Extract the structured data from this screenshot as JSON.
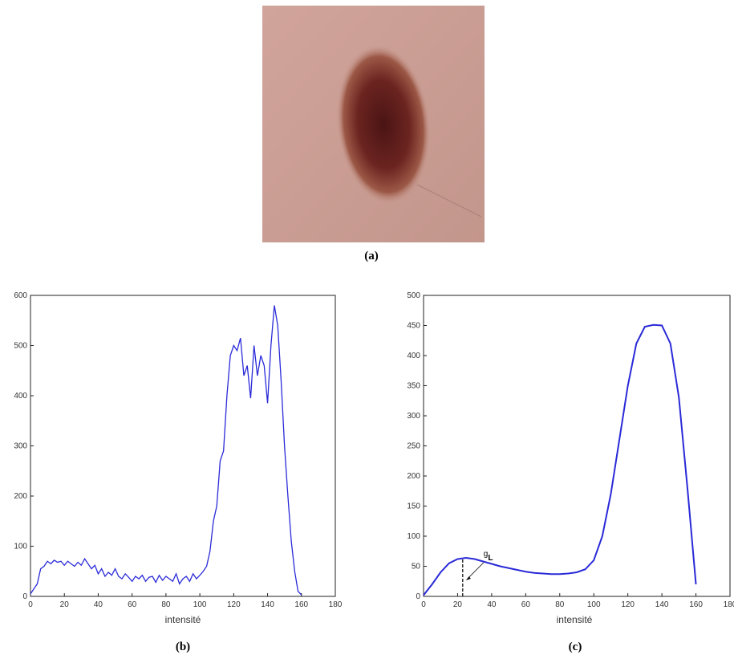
{
  "image": {
    "caption": "(a)"
  },
  "chart_data": [
    {
      "type": "line",
      "caption": "(b)",
      "xlabel": "intensité",
      "color": "#2a2ad8",
      "xlim": [
        0,
        180
      ],
      "xticks": [
        0,
        20,
        40,
        60,
        80,
        100,
        120,
        140,
        160,
        180
      ],
      "ylim": [
        0,
        600
      ],
      "yticks": [
        0,
        100,
        200,
        300,
        400,
        500,
        600
      ],
      "x": [
        0,
        2,
        4,
        6,
        8,
        10,
        12,
        14,
        16,
        18,
        20,
        22,
        24,
        26,
        28,
        30,
        32,
        34,
        36,
        38,
        40,
        42,
        44,
        46,
        48,
        50,
        52,
        54,
        56,
        58,
        60,
        62,
        64,
        66,
        68,
        70,
        72,
        74,
        76,
        78,
        80,
        82,
        84,
        86,
        88,
        90,
        92,
        94,
        96,
        98,
        100,
        102,
        104,
        106,
        108,
        110,
        112,
        114,
        116,
        118,
        120,
        122,
        124,
        126,
        128,
        130,
        132,
        134,
        136,
        138,
        140,
        142,
        144,
        146,
        148,
        150,
        152,
        154,
        156,
        158,
        160
      ],
      "values": [
        5,
        15,
        25,
        55,
        60,
        70,
        65,
        72,
        68,
        70,
        62,
        70,
        65,
        60,
        68,
        62,
        75,
        65,
        55,
        62,
        45,
        55,
        40,
        48,
        42,
        55,
        40,
        35,
        45,
        38,
        30,
        40,
        35,
        42,
        30,
        38,
        40,
        28,
        42,
        32,
        40,
        35,
        30,
        45,
        25,
        35,
        40,
        30,
        45,
        35,
        42,
        50,
        60,
        90,
        150,
        180,
        270,
        290,
        400,
        480,
        500,
        490,
        515,
        440,
        460,
        395,
        500,
        440,
        480,
        460,
        385,
        500,
        580,
        540,
        430,
        300,
        200,
        110,
        50,
        10,
        3
      ]
    },
    {
      "type": "line",
      "caption": "(c)",
      "xlabel": "intensité",
      "color": "#2a2ad8",
      "xlim": [
        0,
        180
      ],
      "xticks": [
        0,
        20,
        40,
        60,
        80,
        100,
        120,
        140,
        160,
        180
      ],
      "ylim": [
        0,
        500
      ],
      "yticks": [
        0,
        50,
        100,
        150,
        200,
        250,
        300,
        350,
        400,
        450,
        500
      ],
      "x": [
        0,
        5,
        10,
        15,
        20,
        25,
        30,
        35,
        40,
        45,
        50,
        55,
        60,
        65,
        70,
        75,
        80,
        85,
        90,
        95,
        100,
        105,
        110,
        115,
        120,
        125,
        130,
        135,
        140,
        145,
        150,
        155,
        160
      ],
      "values": [
        2,
        20,
        40,
        55,
        62,
        64,
        62,
        58,
        54,
        50,
        47,
        44,
        41,
        39,
        38,
        37,
        37,
        38,
        40,
        45,
        60,
        100,
        170,
        260,
        350,
        420,
        448,
        451,
        450,
        420,
        330,
        180,
        20
      ],
      "annotation": {
        "label": "g",
        "subscript": "L",
        "x": 23,
        "y": 64
      }
    }
  ]
}
